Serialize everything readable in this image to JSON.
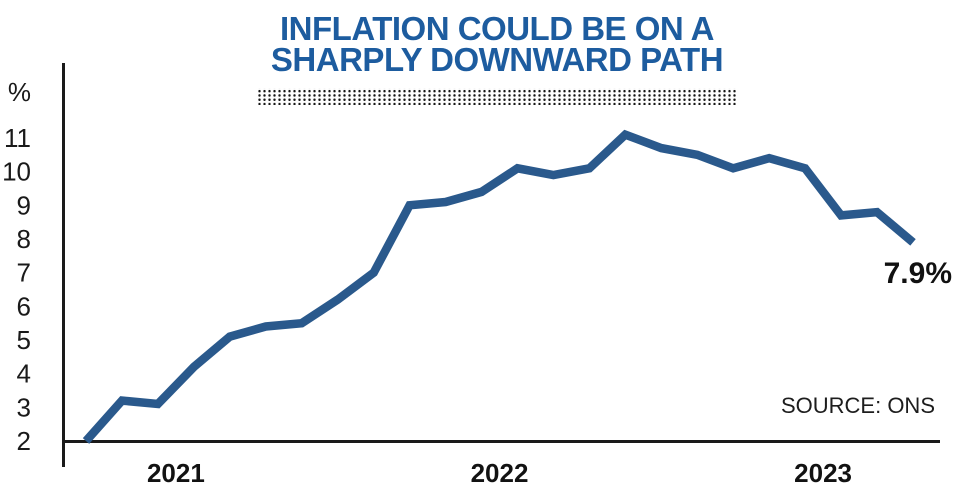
{
  "title": {
    "line1": "INFLATION COULD BE ON A",
    "line2": "SHARPLY DOWNWARD PATH"
  },
  "source": "SOURCE: ONS",
  "colors": {
    "title_blue": "#1d5c9f",
    "line_blue": "#2a598c",
    "axis_black": "#1a1a1a",
    "dots_black": "#161616"
  },
  "chart_data": {
    "type": "line",
    "title": "INFLATION COULD BE ON A SHARPLY DOWNWARD PATH",
    "ylabel": "%",
    "yticks": [
      2,
      3,
      4,
      5,
      6,
      7,
      8,
      9,
      10,
      11
    ],
    "ylim": [
      2,
      13.2
    ],
    "grid": false,
    "frequency": "monthly",
    "start_month": "Jul 2021",
    "end_month": "Jun 2023",
    "values": [
      2.0,
      3.2,
      3.1,
      4.2,
      5.1,
      5.4,
      5.5,
      6.2,
      7.0,
      9.0,
      9.1,
      9.4,
      10.1,
      9.9,
      10.1,
      11.1,
      10.7,
      10.5,
      10.1,
      10.4,
      10.1,
      8.7,
      8.8,
      7.9
    ],
    "peak_value": 11.1,
    "year_labels": [
      {
        "label": "2021",
        "center_index": 2.5
      },
      {
        "label": "2022",
        "center_index": 11.5
      },
      {
        "label": "2023",
        "center_index": 20.5
      }
    ],
    "annotation": {
      "text": "7.9%",
      "index": 23
    }
  }
}
